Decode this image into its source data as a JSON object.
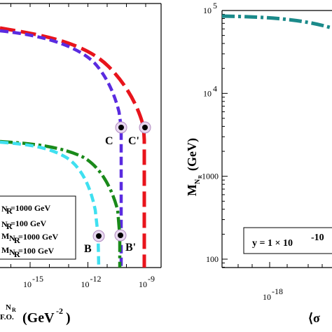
{
  "chart_data": [
    {
      "type": "line",
      "xlabel_sub": "N",
      "xlabel_subsub": "R",
      "xlabel_sub2": "F.O.",
      "xlabel_units": "(GeV",
      "xlabel_exp": "-2",
      "xlabel_close": ")",
      "xscale": "log",
      "xlim": [
        1e-19,
        1e-08
      ],
      "ylim_frac_note": "left portion of panel cropped",
      "xticks": [
        {
          "value": 1e-15,
          "base": "10",
          "exp": "-15"
        },
        {
          "value": 1e-12,
          "base": "10",
          "exp": "-12"
        },
        {
          "value": 1e-09,
          "base": "10",
          "exp": "-9"
        }
      ],
      "series": [
        {
          "color": "#e8141c",
          "dash": "long-dash"
        },
        {
          "color": "#5a2be0",
          "dash": "dash"
        },
        {
          "color": "#1a8a1a",
          "dash": "dash-dot"
        },
        {
          "color": "#3fe0f0",
          "dash": "dash"
        }
      ],
      "points": [
        {
          "label": "C",
          "series": 1
        },
        {
          "label": "C'",
          "series": 0
        },
        {
          "label": "B",
          "series": 3
        },
        {
          "label": "B'",
          "series": 2
        }
      ],
      "legend": [
        {
          "prefix": "",
          "sub": "N",
          "subsub": "R",
          "text": "=1000 GeV"
        },
        {
          "prefix": "",
          "sub": "N",
          "subsub": "R",
          "text": "=100 GeV"
        },
        {
          "prefix": "M",
          "sub": "N",
          "subsub": "R",
          "text": "=1000 GeV"
        },
        {
          "prefix": "M",
          "sub": "N",
          "subsub": "R",
          "text": "=100 GeV"
        }
      ]
    },
    {
      "type": "line",
      "ylabel_main": "M",
      "ylabel_sub": "N",
      "ylabel_subsub": "R",
      "ylabel_units": "(GeV)",
      "xlabel_partial": "⟨σ",
      "yscale": "log",
      "ylim": [
        60,
        100000
      ],
      "yticks": [
        {
          "value": 100,
          "text": "100"
        },
        {
          "value": 1000,
          "text": "1000"
        },
        {
          "value": 10000,
          "base": "10",
          "exp": "4"
        },
        {
          "value": 100000,
          "base": "10",
          "exp": "5"
        }
      ],
      "xticks": [
        {
          "base": "10",
          "exp": "-18"
        }
      ],
      "series": [
        {
          "color": "#1b8a8a",
          "dash": "dash-dot"
        }
      ],
      "annotation": {
        "text": "y = 1 × 10",
        "exp": "-10"
      }
    }
  ]
}
